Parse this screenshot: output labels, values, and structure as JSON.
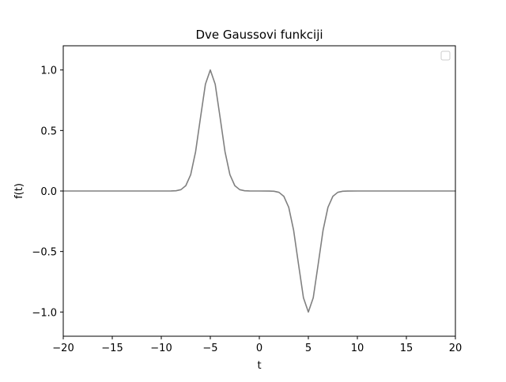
{
  "chart_data": {
    "type": "line",
    "title": "Dve Gaussovi funkciji",
    "xlabel": "t",
    "ylabel": "f(t)",
    "xlim": [
      -20,
      20
    ],
    "ylim": [
      -1.2,
      1.2
    ],
    "xticks": [
      -20,
      -15,
      -10,
      -5,
      0,
      5,
      10,
      15,
      20
    ],
    "xtick_labels": [
      "−20",
      "−15",
      "−10",
      "−5",
      "0",
      "5",
      "10",
      "15",
      "20"
    ],
    "yticks": [
      -1.0,
      -0.5,
      0.0,
      0.5,
      1.0
    ],
    "ytick_labels": [
      "−1.0",
      "−0.5",
      "0.0",
      "0.5",
      "1.0"
    ],
    "grid": false,
    "legend": {
      "placement": "upper-right",
      "entries": []
    },
    "series": [
      {
        "color": "#808080",
        "x": [
          -20,
          -15,
          -12,
          -10,
          -9,
          -8.5,
          -8,
          -7.5,
          -7,
          -6.5,
          -6,
          -5.5,
          -5,
          -4.5,
          -4,
          -3.5,
          -3,
          -2.5,
          -2,
          -1.5,
          -1,
          0,
          1,
          1.5,
          2,
          2.5,
          3,
          3.5,
          4,
          4.5,
          5,
          5.5,
          6,
          6.5,
          7,
          7.5,
          8,
          8.5,
          9,
          10,
          12,
          15,
          20
        ],
        "y": [
          0,
          0,
          0,
          0,
          0.0003,
          0.0022,
          0.011,
          0.044,
          0.135,
          0.325,
          0.607,
          0.882,
          1.0,
          0.882,
          0.607,
          0.325,
          0.135,
          0.044,
          0.011,
          0.0022,
          0.0003,
          0,
          -0.0003,
          -0.0022,
          -0.011,
          -0.044,
          -0.135,
          -0.325,
          -0.607,
          -0.882,
          -1.0,
          -0.882,
          -0.607,
          -0.325,
          -0.135,
          -0.044,
          -0.011,
          -0.0022,
          -0.0003,
          0,
          0,
          0,
          0
        ]
      }
    ]
  }
}
